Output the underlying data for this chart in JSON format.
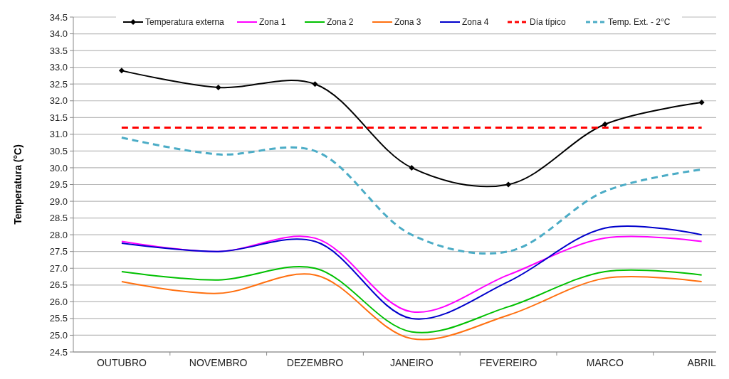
{
  "chart_data": {
    "type": "line",
    "ylabel": "Temperatura (°C)",
    "categories": [
      "OUTUBRO",
      "NOVEMBRO",
      "DEZEMBRO",
      "JANEIRO",
      "FEVEREIRO",
      "MARCO",
      "ABRIL"
    ],
    "ylim": [
      24.5,
      34.5
    ],
    "yticks": [
      {
        "value": 24.5,
        "label": "24.5"
      },
      {
        "value": 25,
        "label": "25.0"
      },
      {
        "value": 25.5,
        "label": "25.5"
      },
      {
        "value": 26,
        "label": "26.0"
      },
      {
        "value": 26.5,
        "label": "26.5"
      },
      {
        "value": 27,
        "label": "27.0"
      },
      {
        "value": 27.5,
        "label": "27.5"
      },
      {
        "value": 28,
        "label": "28.0"
      },
      {
        "value": 28.5,
        "label": "28.5"
      },
      {
        "value": 29,
        "label": "29.0"
      },
      {
        "value": 29.5,
        "label": "29.5"
      },
      {
        "value": 30,
        "label": "30.0"
      },
      {
        "value": 30.5,
        "label": "30.5"
      },
      {
        "value": 31,
        "label": "31.0"
      },
      {
        "value": 31.5,
        "label": "31.5"
      },
      {
        "value": 32,
        "label": "32.0"
      },
      {
        "value": 32.5,
        "label": "32.5"
      },
      {
        "value": 33,
        "label": "33.0"
      },
      {
        "value": 33.5,
        "label": "33.5"
      },
      {
        "value": 34,
        "label": "34.0"
      },
      {
        "value": 34.5,
        "label": "34.5"
      }
    ],
    "grid": "y",
    "legend": "top",
    "series": [
      {
        "name": "Temperatura externa",
        "color": "#000000",
        "marker": "diamond",
        "line_style": "solid",
        "values": [
          32.9,
          32.4,
          32.5,
          30.0,
          29.5,
          31.3,
          31.95
        ]
      },
      {
        "name": "Zona 1",
        "color": "#ff00ff",
        "marker": "none",
        "line_style": "solid",
        "values": [
          27.8,
          27.5,
          27.9,
          25.7,
          26.8,
          27.9,
          27.8
        ]
      },
      {
        "name": "Zona 2",
        "color": "#00c000",
        "marker": "none",
        "line_style": "solid",
        "values": [
          26.9,
          26.65,
          27.0,
          25.1,
          25.85,
          26.9,
          26.8
        ]
      },
      {
        "name": "Zona 3",
        "color": "#ff7010",
        "marker": "none",
        "line_style": "solid",
        "values": [
          26.6,
          26.25,
          26.8,
          24.9,
          25.6,
          26.7,
          26.6
        ]
      },
      {
        "name": "Zona 4",
        "color": "#0000cc",
        "marker": "none",
        "line_style": "solid",
        "values": [
          27.75,
          27.5,
          27.8,
          25.5,
          26.6,
          28.2,
          28.0
        ]
      },
      {
        "name": "Día típico",
        "color": "#ff0000",
        "marker": "none",
        "line_style": "dashed",
        "values": [
          31.2,
          31.2,
          31.2,
          31.2,
          31.2,
          31.2,
          31.2
        ]
      },
      {
        "name": "Temp. Ext. - 2°C",
        "color": "#4bacc6",
        "marker": "none",
        "line_style": "dashed",
        "values": [
          30.9,
          30.4,
          30.5,
          28.0,
          27.5,
          29.3,
          29.95
        ]
      }
    ]
  }
}
